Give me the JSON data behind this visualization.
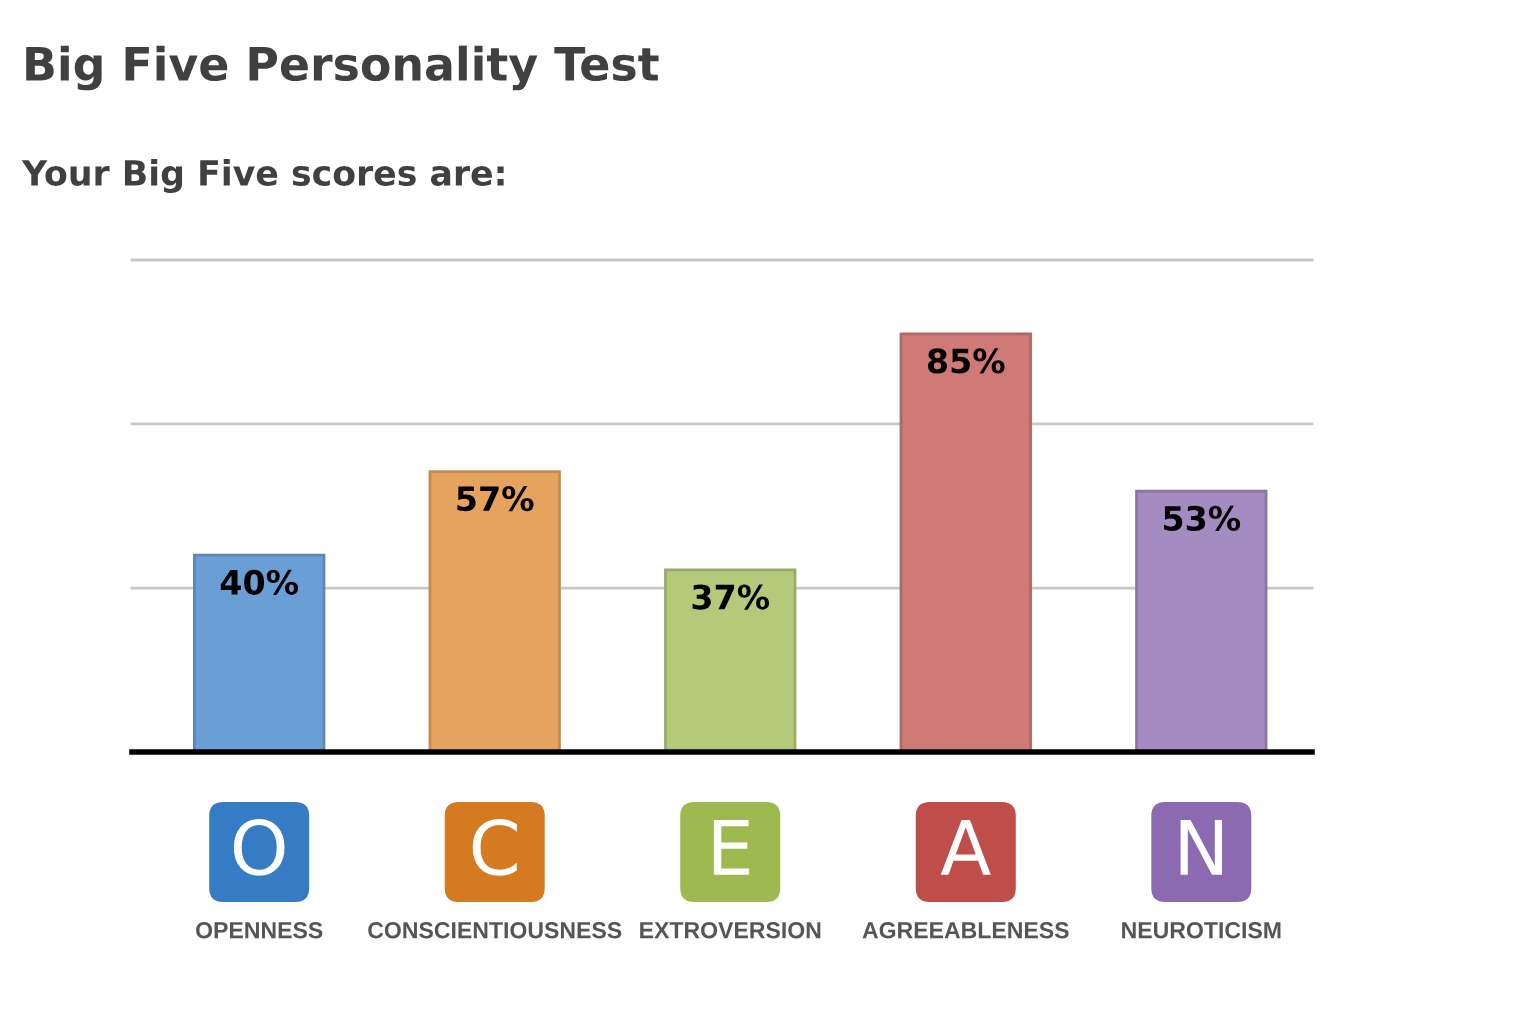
{
  "chart_data": {
    "type": "bar",
    "title": "Big Five Personality Test",
    "subtitle": "Your Big Five scores are:",
    "categories": [
      "OPENNESS",
      "CONSCIENTIOUSNESS",
      "EXTROVERSION",
      "AGREEABLENESS",
      "NEUROTICISM"
    ],
    "values": [
      40,
      57,
      37,
      85,
      53
    ],
    "value_labels": [
      "40%",
      "57%",
      "37%",
      "85%",
      "53%"
    ],
    "colors": [
      "#6a9fd6",
      "#e6a35f",
      "#b5c97a",
      "#d07a77",
      "#a48bc1"
    ],
    "ylim": [
      0,
      100
    ],
    "yticks": [
      {
        "value": 33.3,
        "label": null
      },
      {
        "value": 66.7,
        "label": null
      },
      {
        "value": 100,
        "label": null
      }
    ],
    "grid": "y",
    "tick_labels": "x",
    "annotations": [
      "O",
      "C",
      "E",
      "A",
      "N"
    ]
  }
}
